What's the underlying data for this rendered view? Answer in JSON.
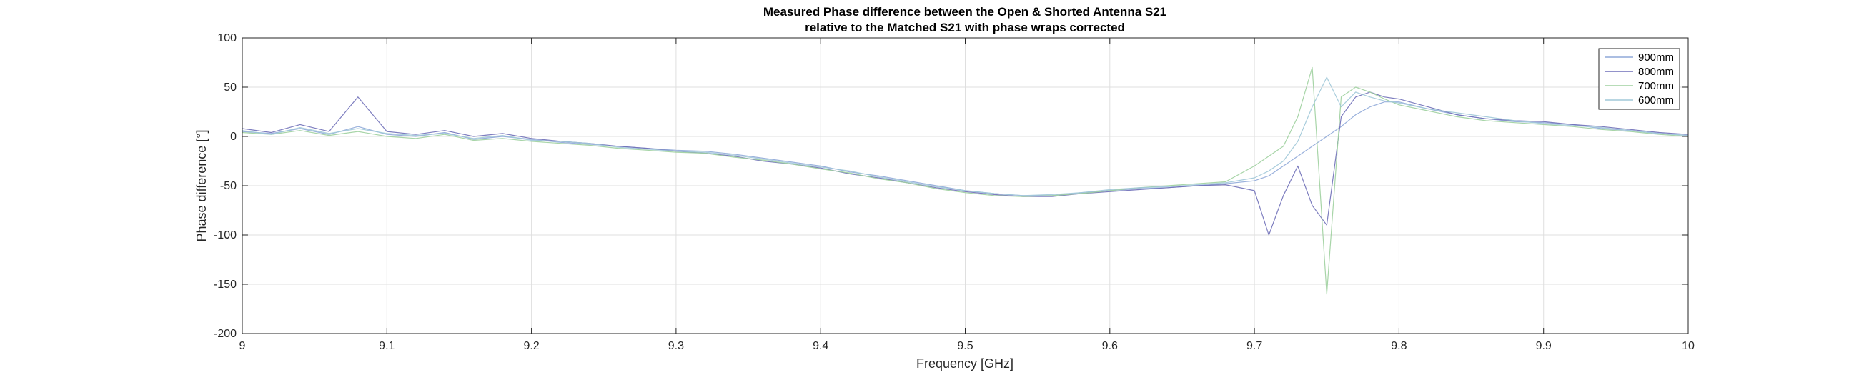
{
  "chart_data": {
    "type": "line",
    "title": [
      "Measured Phase difference between the Open & Shorted Antenna S21",
      "relative to the Matched S21 with phase wraps corrected"
    ],
    "xlabel": "Frequency [GHz]",
    "ylabel": "Phase difference [°]",
    "xlim": [
      9,
      10
    ],
    "ylim": [
      -200,
      100
    ],
    "xticks": [
      9,
      9.1,
      9.2,
      9.3,
      9.4,
      9.5,
      9.6,
      9.7,
      9.8,
      9.9,
      10
    ],
    "xtick_labels": [
      "9",
      "9.1",
      "9.2",
      "9.3",
      "9.4",
      "9.5",
      "9.6",
      "9.7",
      "9.8",
      "9.9",
      "10"
    ],
    "yticks": [
      100,
      50,
      0,
      -50,
      -100,
      -150,
      -200
    ],
    "ytick_labels": [
      "100",
      "50",
      "0",
      "-50",
      "-100",
      "-150",
      "-200"
    ],
    "grid": true,
    "legend_position": "top-right",
    "x": [
      9.0,
      9.02,
      9.04,
      9.06,
      9.08,
      9.1,
      9.12,
      9.14,
      9.16,
      9.18,
      9.2,
      9.22,
      9.24,
      9.26,
      9.28,
      9.3,
      9.32,
      9.34,
      9.36,
      9.38,
      9.4,
      9.42,
      9.44,
      9.46,
      9.48,
      9.5,
      9.52,
      9.54,
      9.56,
      9.58,
      9.6,
      9.62,
      9.64,
      9.66,
      9.68,
      9.7,
      9.71,
      9.72,
      9.73,
      9.74,
      9.75,
      9.76,
      9.77,
      9.78,
      9.79,
      9.8,
      9.82,
      9.84,
      9.86,
      9.88,
      9.9,
      9.92,
      9.94,
      9.96,
      9.98,
      10.0
    ],
    "series": [
      {
        "name": "900mm",
        "color": "#8fa8d8",
        "values": [
          5,
          3,
          8,
          2,
          10,
          2,
          0,
          4,
          -3,
          0,
          -3,
          -6,
          -8,
          -10,
          -12,
          -14,
          -15,
          -18,
          -22,
          -26,
          -30,
          -36,
          -40,
          -45,
          -50,
          -55,
          -58,
          -60,
          -60,
          -57,
          -55,
          -53,
          -52,
          -50,
          -48,
          -45,
          -40,
          -30,
          -20,
          -10,
          0,
          10,
          22,
          30,
          35,
          35,
          28,
          22,
          18,
          15,
          14,
          12,
          8,
          6,
          3,
          1
        ]
      },
      {
        "name": "800mm",
        "color": "#6f6fb8",
        "values": [
          8,
          4,
          12,
          5,
          40,
          5,
          2,
          6,
          0,
          3,
          -2,
          -5,
          -7,
          -10,
          -12,
          -15,
          -17,
          -20,
          -25,
          -28,
          -32,
          -38,
          -42,
          -47,
          -52,
          -56,
          -59,
          -61,
          -61,
          -58,
          -56,
          -54,
          -52,
          -50,
          -49,
          -55,
          -100,
          -60,
          -30,
          -70,
          -90,
          20,
          40,
          45,
          40,
          38,
          30,
          22,
          18,
          16,
          15,
          12,
          10,
          7,
          4,
          2
        ]
      },
      {
        "name": "700mm",
        "color": "#9fd09f",
        "values": [
          4,
          2,
          6,
          1,
          5,
          0,
          -2,
          2,
          -4,
          -2,
          -5,
          -7,
          -9,
          -12,
          -14,
          -16,
          -17,
          -21,
          -24,
          -28,
          -33,
          -37,
          -43,
          -47,
          -53,
          -57,
          -60,
          -61,
          -60,
          -58,
          -55,
          -52,
          -50,
          -48,
          -46,
          -30,
          -20,
          -10,
          20,
          70,
          -160,
          40,
          50,
          45,
          38,
          32,
          26,
          20,
          16,
          14,
          12,
          10,
          7,
          5,
          2,
          0
        ]
      },
      {
        "name": "600mm",
        "color": "#a0c8d8",
        "values": [
          6,
          2,
          9,
          3,
          8,
          3,
          1,
          3,
          -2,
          1,
          -4,
          -5,
          -7,
          -11,
          -13,
          -15,
          -16,
          -19,
          -23,
          -27,
          -31,
          -35,
          -41,
          -46,
          -51,
          -55,
          -58,
          -60,
          -59,
          -57,
          -54,
          -52,
          -51,
          -49,
          -47,
          -42,
          -35,
          -25,
          -5,
          30,
          60,
          30,
          45,
          40,
          36,
          34,
          28,
          24,
          20,
          16,
          13,
          11,
          9,
          6,
          3,
          1
        ]
      }
    ]
  }
}
